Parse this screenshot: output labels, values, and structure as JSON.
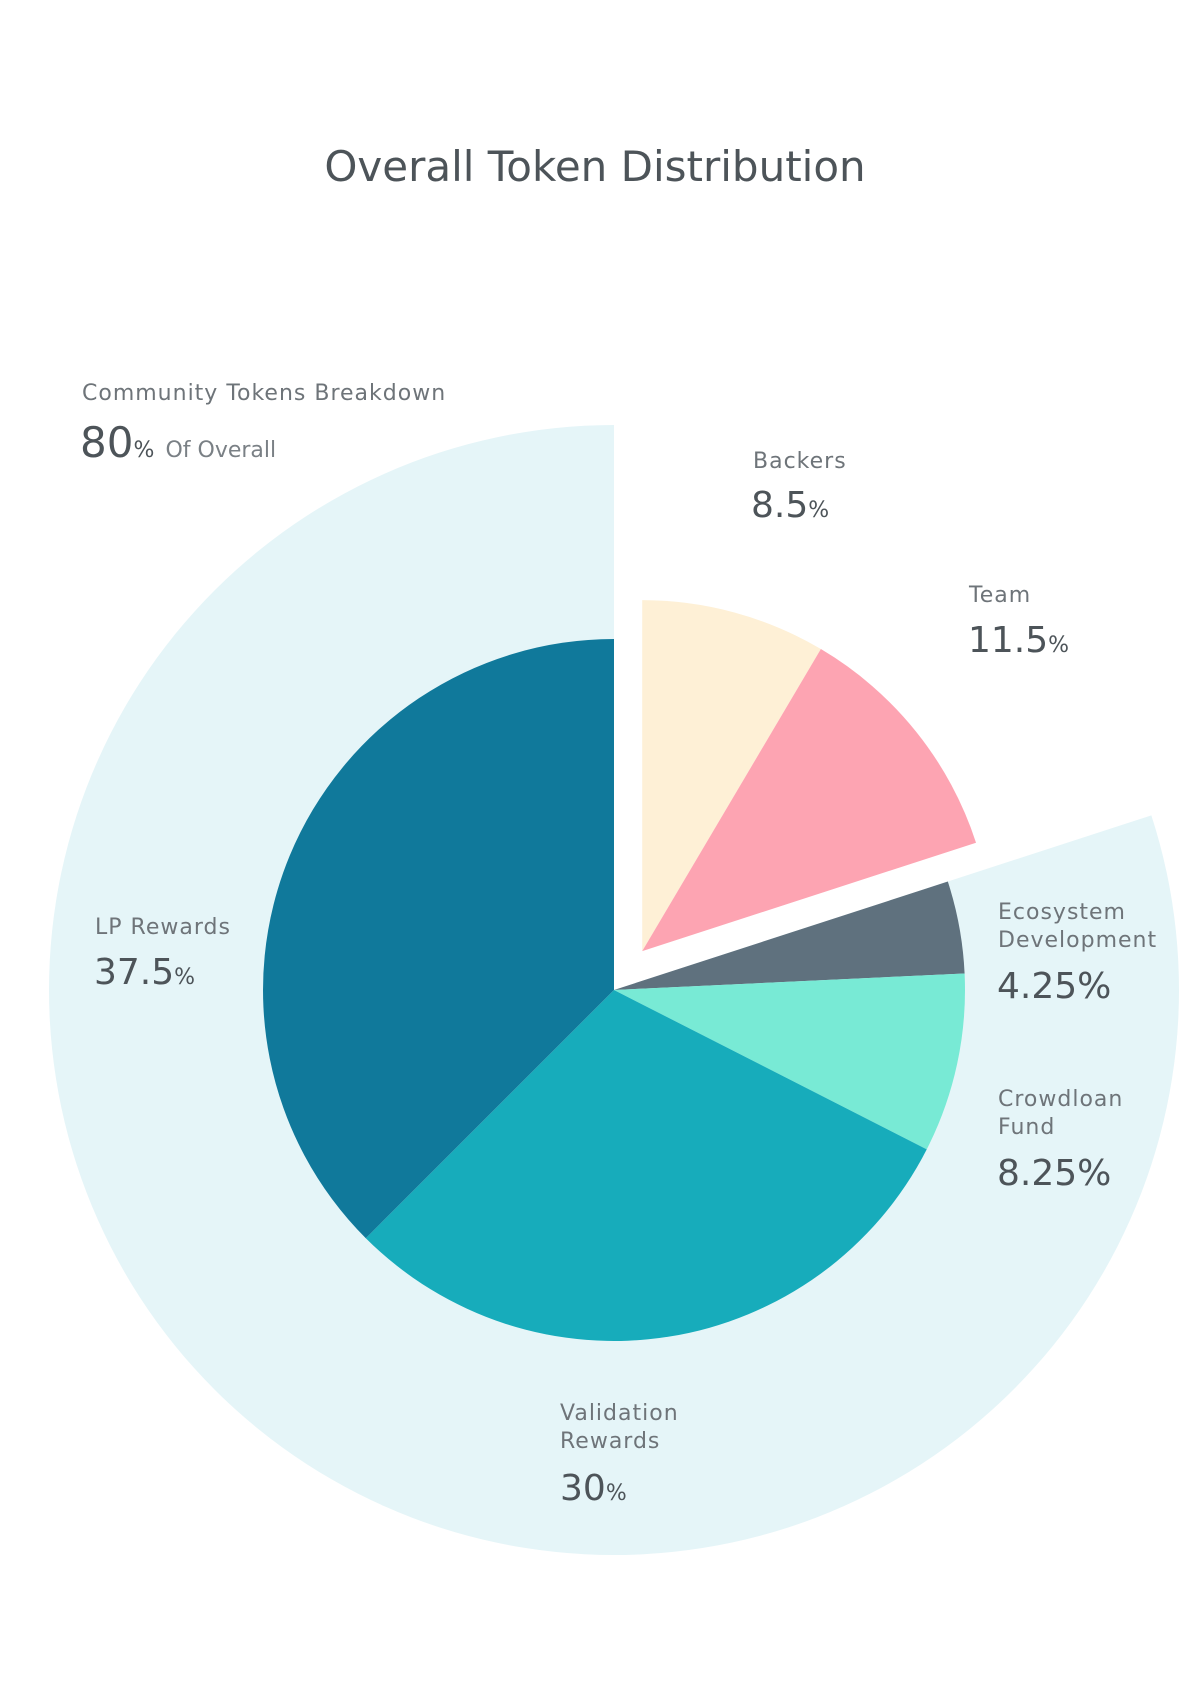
{
  "chart_data": {
    "type": "pie",
    "title": "Overall Token Distribution",
    "unit": "%",
    "group": {
      "label": "Community Tokens Breakdown",
      "value": "80",
      "unit": "%",
      "suffix": "Of Overall",
      "color": "#e5f5f8"
    },
    "slices": [
      {
        "key": "backers",
        "lines": [
          "Backers"
        ],
        "value": 8.5,
        "value_text": "8.5",
        "unit": "%",
        "color": "#fef0d6",
        "group": "other"
      },
      {
        "key": "team",
        "lines": [
          "Team"
        ],
        "value": 11.5,
        "value_text": "11.5",
        "unit": "%",
        "color": "#fda4b2",
        "group": "other"
      },
      {
        "key": "ecosystem",
        "lines": [
          "Ecosystem",
          "Development"
        ],
        "value": 4.25,
        "value_text": "4.25",
        "unit": "%",
        "color": "#5f717e",
        "group": "community"
      },
      {
        "key": "crowdloan",
        "lines": [
          "Crowdloan",
          "Fund"
        ],
        "value": 8.25,
        "value_text": "8.25",
        "unit": "%",
        "color": "#78ead5",
        "group": "community"
      },
      {
        "key": "validation",
        "lines": [
          "Validation",
          "Rewards"
        ],
        "value": 30,
        "value_text": "30",
        "unit": "%",
        "color": "#17acbb",
        "group": "community"
      },
      {
        "key": "lp",
        "lines": [
          "LP Rewards"
        ],
        "value": 37.5,
        "value_text": "37.5",
        "unit": "%",
        "color": "#10799b",
        "group": "community"
      }
    ]
  }
}
